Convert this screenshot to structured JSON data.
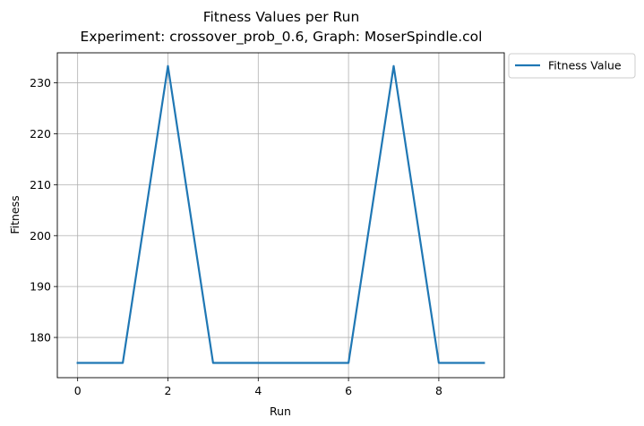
{
  "chart_data": {
    "type": "line",
    "title": "Fitness Values per Run",
    "subtitle": "Experiment: crossover_prob_0.6, Graph: MoserSpindle.col",
    "xlabel": "Run",
    "ylabel": "Fitness",
    "xlim": [
      -0.45,
      9.45
    ],
    "ylim": [
      172.1,
      235.9
    ],
    "xticks": [
      0,
      2,
      4,
      6,
      8
    ],
    "yticks": [
      180,
      190,
      200,
      210,
      220,
      230
    ],
    "grid": true,
    "legend_position": "outside-top-right",
    "series": [
      {
        "name": "Fitness Value",
        "color": "#1f77b4",
        "x": [
          0,
          1,
          2,
          3,
          4,
          5,
          6,
          7,
          8,
          9
        ],
        "y": [
          175,
          175,
          233.3,
          175,
          175,
          175,
          175,
          233.3,
          175,
          175
        ]
      }
    ]
  }
}
